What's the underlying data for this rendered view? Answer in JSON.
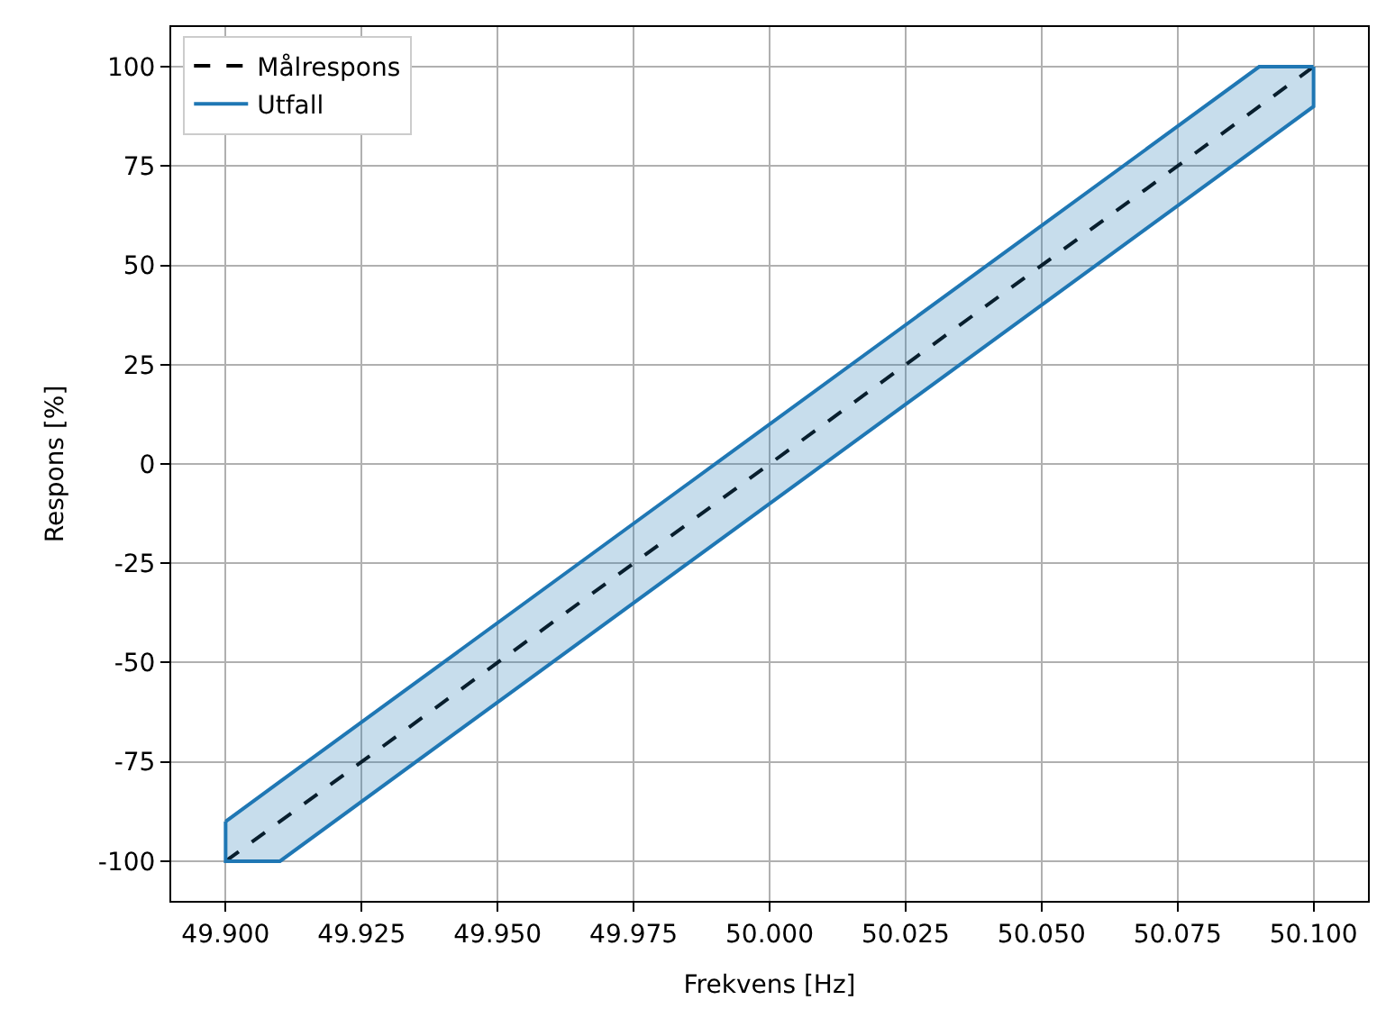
{
  "chart_data": {
    "type": "line",
    "xlabel": "Frekvens [Hz]",
    "ylabel": "Respons [%]",
    "xlim": [
      49.89,
      50.11
    ],
    "ylim": [
      -110,
      110
    ],
    "xticks": [
      {
        "value": 49.9,
        "label": "49.900"
      },
      {
        "value": 49.925,
        "label": "49.925"
      },
      {
        "value": 49.95,
        "label": "49.950"
      },
      {
        "value": 49.975,
        "label": "49.975"
      },
      {
        "value": 50.0,
        "label": "50.000"
      },
      {
        "value": 50.025,
        "label": "50.025"
      },
      {
        "value": 50.05,
        "label": "50.050"
      },
      {
        "value": 50.075,
        "label": "50.075"
      },
      {
        "value": 50.1,
        "label": "50.100"
      }
    ],
    "yticks": [
      -100,
      -75,
      -50,
      -25,
      0,
      25,
      50,
      75,
      100
    ],
    "grid": true,
    "legend": "top left",
    "series": [
      {
        "name": "Målrespons",
        "type": "line",
        "color": "#000000",
        "line_style": "dashed",
        "x": [
          49.9,
          50.1
        ],
        "values": [
          -100,
          100
        ]
      },
      {
        "name": "Utfall",
        "color": "#1f77b4",
        "x": [
          49.9,
          49.91,
          50.09,
          50.1
        ],
        "values": [
          -90,
          -80,
          100,
          100
        ],
        "lower": [
          -100,
          -100,
          80,
          90
        ],
        "upper": [
          -90,
          -80,
          100,
          100
        ]
      },
      {
        "type": "line",
        "color": "#1f77b4",
        "x": [
          49.9,
          49.9,
          49.91,
          50.09,
          50.1,
          50.1
        ],
        "values": [
          -90,
          -100,
          -100,
          80,
          90,
          100
        ]
      }
    ]
  }
}
